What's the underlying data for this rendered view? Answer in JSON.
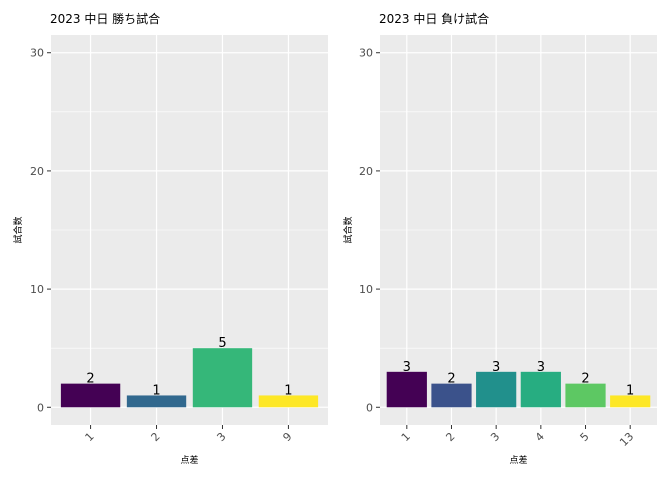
{
  "chart_data": [
    {
      "type": "bar",
      "title": "2023 中日 勝ち試合",
      "xlabel": "点差",
      "ylabel": "試合数",
      "categories": [
        "1",
        "2",
        "3",
        "9"
      ],
      "values": [
        2,
        1,
        5,
        1
      ],
      "colors": [
        "#440154",
        "#31688E",
        "#35B779",
        "#FDE725"
      ],
      "ylim": [
        0,
        30
      ],
      "yticks": [
        "0",
        "10",
        "20",
        "30"
      ],
      "grid": true,
      "legend": "none"
    },
    {
      "type": "bar",
      "title": "2023 中日 負け試合",
      "xlabel": "点差",
      "ylabel": "試合数",
      "categories": [
        "1",
        "2",
        "3",
        "4",
        "5",
        "13"
      ],
      "values": [
        3,
        2,
        3,
        3,
        2,
        1
      ],
      "colors": [
        "#440154",
        "#3B528B",
        "#21908C",
        "#27AD81",
        "#5DC863",
        "#FDE725"
      ],
      "ylim": [
        0,
        30
      ],
      "yticks": [
        "0",
        "10",
        "20",
        "30"
      ],
      "grid": true,
      "legend": "none"
    }
  ]
}
